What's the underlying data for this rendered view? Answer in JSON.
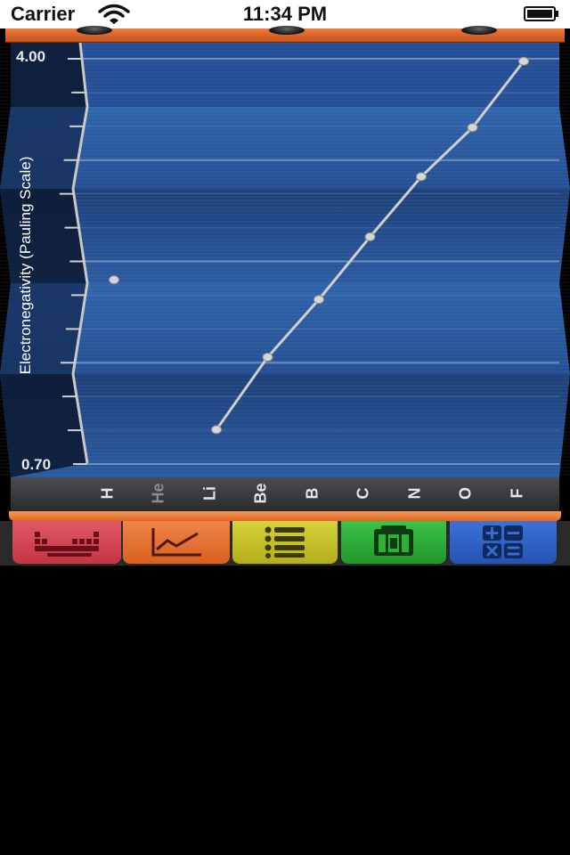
{
  "status_bar": {
    "carrier": "Carrier",
    "time": "11:34 PM"
  },
  "chart_data": {
    "type": "line",
    "ylabel": "Electronegativity (Pauling Scale)",
    "ylim": [
      0.7,
      4.0
    ],
    "ytick_labels": [
      "4.00",
      "0.70"
    ],
    "categories": [
      "H",
      "He",
      "Li",
      "Be",
      "B",
      "C",
      "N",
      "O",
      "F"
    ],
    "dimmed_categories": [
      "He"
    ],
    "series": [
      {
        "values": [
          2.2,
          null,
          0.98,
          1.57,
          2.04,
          2.55,
          3.04,
          3.44,
          3.98
        ]
      }
    ],
    "grid": true
  },
  "tabs": [
    {
      "icon": "periodic-table-icon",
      "color": "#d94452"
    },
    {
      "icon": "line-chart-icon",
      "color": "#e8702e"
    },
    {
      "icon": "list-icon",
      "color": "#c9c52a"
    },
    {
      "icon": "element-card-icon",
      "color": "#2fae3a"
    },
    {
      "icon": "calculator-icon",
      "color": "#2f63c8"
    }
  ],
  "colors": {
    "plot_blue": "#2a5aa0",
    "accent_orange": "#e8702e",
    "line": "#cfcfcf"
  }
}
